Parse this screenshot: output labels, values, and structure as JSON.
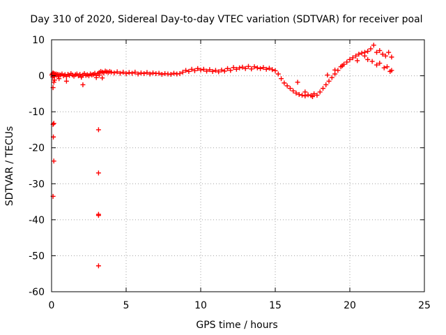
{
  "chart_data": {
    "type": "scatter",
    "title": "Day 310 of 2020, Sidereal Day-to-day VTEC variation (SDTVAR) for receiver poal",
    "xlabel": "GPS time / hours",
    "ylabel": "SDTVAR / TECUs",
    "xlim": [
      0,
      25
    ],
    "ylim": [
      -60,
      10
    ],
    "xticks": [
      "0",
      "5",
      "10",
      "15",
      "20",
      "25"
    ],
    "yticks": [
      "10",
      "0",
      "-10",
      "-20",
      "-30",
      "-40",
      "-50",
      "-60"
    ],
    "grid": true,
    "marker": "plus",
    "marker_color": "#ff0000",
    "series": [
      {
        "name": "SDTVAR",
        "x": [
          0.02,
          0.05,
          0.08,
          0.1,
          0.12,
          0.15,
          0.18,
          0.2,
          0.25,
          0.3,
          0.35,
          0.4,
          0.45,
          0.5,
          0.6,
          0.7,
          0.8,
          0.9,
          1.0,
          1.1,
          1.2,
          1.3,
          1.4,
          1.5,
          1.6,
          1.7,
          1.8,
          1.9,
          2.0,
          2.1,
          2.2,
          2.3,
          2.4,
          2.5,
          2.6,
          2.7,
          2.8,
          2.9,
          3.0,
          3.1,
          3.2,
          3.3,
          3.4,
          3.5,
          3.6,
          3.7,
          3.8,
          3.9,
          4.0,
          4.2,
          4.4,
          4.6,
          4.8,
          5.0,
          5.2,
          5.4,
          5.6,
          5.8,
          6.0,
          6.2,
          6.4,
          6.6,
          6.8,
          7.0,
          7.2,
          7.4,
          7.6,
          7.8,
          8.0,
          8.2,
          8.4,
          8.6,
          8.8,
          9.0,
          9.2,
          9.4,
          9.6,
          9.8,
          10.0,
          10.2,
          10.4,
          10.6,
          10.8,
          11.0,
          11.2,
          11.4,
          11.6,
          11.8,
          12.0,
          12.2,
          12.4,
          12.6,
          12.8,
          13.0,
          13.2,
          13.4,
          13.6,
          13.8,
          14.0,
          14.2,
          14.4,
          14.6,
          14.8,
          15.0,
          15.2,
          15.4,
          15.6,
          15.8,
          16.0,
          16.2,
          16.4,
          16.6,
          16.8,
          17.0,
          17.2,
          17.4,
          17.6,
          17.8,
          18.0,
          18.2,
          18.4,
          18.6,
          18.8,
          19.0,
          19.2,
          19.4,
          19.6,
          19.8,
          20.0,
          20.2,
          20.4,
          20.6,
          20.8,
          21.0,
          21.2,
          21.4,
          21.6,
          21.8,
          22.0,
          22.2,
          22.4,
          22.6,
          22.8,
          0.1,
          0.15,
          0.2,
          0.5,
          1.0,
          2.0,
          2.1,
          3.0,
          3.2,
          3.4,
          0.1,
          0.15,
          0.12,
          0.15,
          0.1,
          3.15,
          3.15,
          3.15,
          3.15,
          3.15,
          21.0,
          21.5,
          22.0,
          22.5,
          22.8,
          21.2,
          21.8,
          22.3,
          22.7,
          20.5,
          19.5,
          19.0,
          18.5,
          16.5,
          17.0,
          17.5
        ],
        "y": [
          0.2,
          0.5,
          -0.3,
          0.8,
          0.4,
          0.0,
          0.6,
          -0.2,
          0.3,
          0.5,
          0.1,
          0.4,
          -0.1,
          0.3,
          0.2,
          0.5,
          0.0,
          0.3,
          -0.2,
          0.4,
          0.1,
          0.6,
          0.2,
          -0.1,
          0.3,
          0.5,
          0.0,
          0.4,
          -0.3,
          0.2,
          0.6,
          0.1,
          0.3,
          0.0,
          0.5,
          0.2,
          0.4,
          0.7,
          0.1,
          0.6,
          0.9,
          1.2,
          1.0,
          0.8,
          1.3,
          1.1,
          0.9,
          1.2,
          1.0,
          0.8,
          1.1,
          0.7,
          1.0,
          0.6,
          0.9,
          0.7,
          1.0,
          0.5,
          0.8,
          0.6,
          0.9,
          0.5,
          0.8,
          0.6,
          0.7,
          0.4,
          0.6,
          0.5,
          0.4,
          0.7,
          0.5,
          0.6,
          1.0,
          1.5,
          1.2,
          1.8,
          1.4,
          2.0,
          1.6,
          1.8,
          1.3,
          1.7,
          1.2,
          1.5,
          1.1,
          1.6,
          1.3,
          2.0,
          1.5,
          2.3,
          1.8,
          2.2,
          2.4,
          2.0,
          2.6,
          1.9,
          2.5,
          2.2,
          2.0,
          2.3,
          1.8,
          2.1,
          1.7,
          1.4,
          0.5,
          -0.8,
          -2.0,
          -2.8,
          -3.5,
          -4.2,
          -4.8,
          -5.2,
          -5.4,
          -5.6,
          -5.3,
          -5.5,
          -5.0,
          -5.4,
          -4.5,
          -3.5,
          -2.5,
          -1.5,
          -0.5,
          0.5,
          1.5,
          2.5,
          3.2,
          3.8,
          4.5,
          5.0,
          5.5,
          6.0,
          6.3,
          6.5,
          6.8,
          7.5,
          8.5,
          6.5,
          7.0,
          6.0,
          5.5,
          6.5,
          5.2,
          -3.3,
          -1.8,
          -1.2,
          -0.8,
          -1.5,
          -0.4,
          -2.5,
          -0.5,
          0.2,
          -0.6,
          -13.5,
          -13.2,
          -17.0,
          -23.7,
          -33.5,
          -15.0,
          -27.0,
          -38.5,
          -38.8,
          -52.8,
          5.5,
          4.0,
          3.5,
          2.5,
          1.5,
          4.5,
          3.0,
          2.2,
          1.2,
          4.2,
          2.8,
          1.6,
          0.2,
          -1.8,
          -4.5,
          -5.8
        ]
      }
    ]
  }
}
